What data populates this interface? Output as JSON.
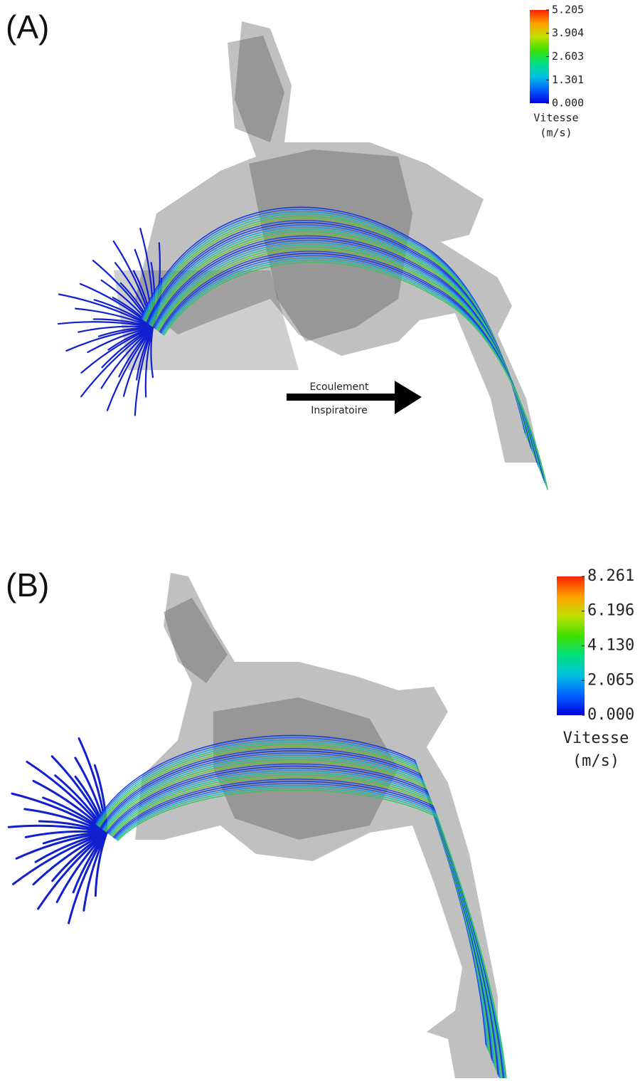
{
  "panels": [
    {
      "label": "(A)",
      "colorbar": {
        "lim": [
          0,
          5.205
        ],
        "ticks": [
          5.205,
          3.904,
          2.603,
          1.301,
          {
            "value": 0,
            "label": "0.000"
          }
        ],
        "title": "Vitesse",
        "unit": "(m/s)",
        "colors": [
          "#0000e0",
          "#0060ff",
          "#00c0e0",
          "#00e080",
          "#40e000",
          "#c0e000",
          "#ffa000",
          "#ff2000"
        ]
      },
      "annotation": {
        "line1": "Ecoulement",
        "line2": "Inspiratoire"
      }
    },
    {
      "label": "(B)",
      "colorbar": {
        "lim": [
          0,
          8.261
        ],
        "ticks": [
          8.261,
          6.196,
          {
            "value": 4.13,
            "label": "4.130"
          },
          2.065,
          {
            "value": 0,
            "label": "0.000"
          }
        ],
        "title": "Vitesse",
        "unit": "(m/s)",
        "colors": [
          "#0000e0",
          "#0060ff",
          "#00c0e0",
          "#00e080",
          "#40e000",
          "#c0e000",
          "#ffa000",
          "#ff2000"
        ]
      }
    }
  ]
}
